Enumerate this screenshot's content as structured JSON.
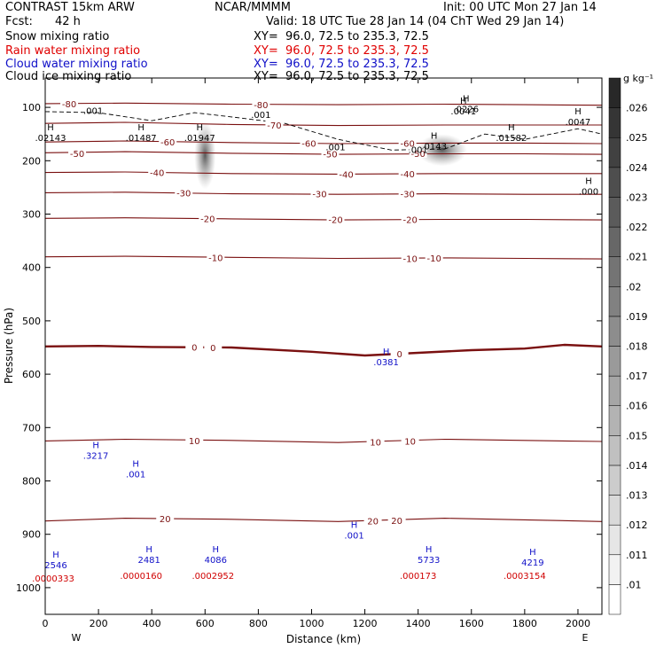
{
  "header": {
    "model": "CONTRAST 15km ARW",
    "org": "NCAR/MMMM",
    "init": "Init: 00 UTC Mon 27 Jan 14",
    "fcst_label": "Fcst:",
    "fcst_value": "42 h",
    "valid": "Valid: 18 UTC Tue 28 Jan 14 (04 ChT Wed 29 Jan 14)",
    "fields": [
      {
        "name": "Snow mixing ratio",
        "xy": "XY=  96.0, 72.5 to 235.3, 72.5",
        "color": "#000000"
      },
      {
        "name": "Rain water mixing ratio",
        "xy": "XY=  96.0, 72.5 to 235.3, 72.5",
        "color": "#e00000"
      },
      {
        "name": "Cloud water mixing ratio",
        "xy": "XY=  96.0, 72.5 to 235.3, 72.5",
        "color": "#1010c8"
      },
      {
        "name": "Cloud ice mixing ratio",
        "xy": "XY=  96.0, 72.5 to 235.3, 72.5",
        "color": "#000000"
      }
    ]
  },
  "chart_data": {
    "type": "contour",
    "xlabel": "Distance (km)",
    "ylabel": "Pressure (hPa)",
    "xlim": [
      0,
      2090
    ],
    "ylim": [
      1050,
      45
    ],
    "x_ticks": [
      0,
      200,
      400,
      600,
      800,
      1000,
      1200,
      1400,
      1600,
      1800,
      2000
    ],
    "y_ticks": [
      100,
      200,
      300,
      400,
      500,
      600,
      700,
      800,
      900,
      1000
    ],
    "x_end_labels": {
      "left": "W",
      "right": "E"
    },
    "colorbar": {
      "unit": "g kg⁻¹",
      "levels": [
        ".01",
        ".011",
        ".012",
        ".013",
        ".014",
        ".015",
        ".016",
        ".017",
        ".018",
        ".019",
        ".02",
        ".021",
        ".022",
        ".023",
        ".024",
        ".025",
        ".026"
      ]
    },
    "temperature_isotherms": [
      {
        "label": "-80",
        "points": [
          [
            0,
            93
          ],
          [
            300,
            92
          ],
          [
            700,
            94
          ],
          [
            1100,
            95
          ],
          [
            1500,
            94
          ],
          [
            1800,
            95
          ],
          [
            2090,
            96
          ]
        ],
        "label_positions": [
          [
            90,
            93
          ],
          [
            810,
            95
          ]
        ]
      },
      {
        "label": "-70",
        "points": [
          [
            0,
            130
          ],
          [
            300,
            128
          ],
          [
            700,
            132
          ],
          [
            1100,
            134
          ],
          [
            1500,
            133
          ],
          [
            1800,
            133
          ],
          [
            2090,
            133
          ]
        ],
        "label_positions": [
          [
            860,
            133
          ]
        ]
      },
      {
        "label": "-60",
        "points": [
          [
            0,
            165
          ],
          [
            300,
            163
          ],
          [
            700,
            166
          ],
          [
            1100,
            168
          ],
          [
            1500,
            167
          ],
          [
            1800,
            167
          ],
          [
            2090,
            168
          ]
        ],
        "label_positions": [
          [
            460,
            165
          ],
          [
            990,
            167
          ],
          [
            1360,
            167
          ]
        ]
      },
      {
        "label": "-50",
        "points": [
          [
            0,
            185
          ],
          [
            300,
            183
          ],
          [
            700,
            186
          ],
          [
            1100,
            188
          ],
          [
            1500,
            187
          ],
          [
            1800,
            187
          ],
          [
            2090,
            188
          ]
        ],
        "label_positions": [
          [
            120,
            186
          ],
          [
            1070,
            187
          ],
          [
            1400,
            186
          ]
        ]
      },
      {
        "label": "-40",
        "points": [
          [
            0,
            222
          ],
          [
            300,
            221
          ],
          [
            700,
            224
          ],
          [
            1100,
            225
          ],
          [
            1500,
            224
          ],
          [
            1800,
            224
          ],
          [
            2090,
            224
          ]
        ],
        "label_positions": [
          [
            420,
            222
          ],
          [
            1130,
            225
          ],
          [
            1360,
            224
          ]
        ]
      },
      {
        "label": "-30",
        "points": [
          [
            0,
            260
          ],
          [
            300,
            259
          ],
          [
            700,
            262
          ],
          [
            1100,
            263
          ],
          [
            1500,
            262
          ],
          [
            1800,
            263
          ],
          [
            2090,
            263
          ]
        ],
        "label_positions": [
          [
            520,
            260
          ],
          [
            1030,
            262
          ],
          [
            1360,
            262
          ]
        ]
      },
      {
        "label": "-20",
        "points": [
          [
            0,
            308
          ],
          [
            300,
            307
          ],
          [
            700,
            309
          ],
          [
            1100,
            311
          ],
          [
            1500,
            310
          ],
          [
            1800,
            310
          ],
          [
            2090,
            311
          ]
        ],
        "label_positions": [
          [
            610,
            308
          ],
          [
            1090,
            310
          ],
          [
            1370,
            310
          ]
        ]
      },
      {
        "label": "-10",
        "points": [
          [
            0,
            380
          ],
          [
            300,
            379
          ],
          [
            700,
            381
          ],
          [
            1100,
            383
          ],
          [
            1500,
            382
          ],
          [
            1800,
            383
          ],
          [
            2090,
            384
          ]
        ],
        "label_positions": [
          [
            640,
            381
          ],
          [
            1370,
            383
          ],
          [
            1460,
            382
          ]
        ]
      },
      {
        "label": "0",
        "points": [
          [
            0,
            548
          ],
          [
            200,
            547
          ],
          [
            400,
            549
          ],
          [
            700,
            550
          ],
          [
            1000,
            558
          ],
          [
            1200,
            565
          ],
          [
            1400,
            560
          ],
          [
            1600,
            555
          ],
          [
            1800,
            552
          ],
          [
            1950,
            545
          ],
          [
            2090,
            548
          ]
        ],
        "label_positions": [
          [
            560,
            549
          ],
          [
            630,
            550
          ],
          [
            1330,
            562
          ]
        ]
      },
      {
        "label": "10",
        "points": [
          [
            0,
            725
          ],
          [
            300,
            722
          ],
          [
            700,
            724
          ],
          [
            1100,
            728
          ],
          [
            1500,
            722
          ],
          [
            1800,
            724
          ],
          [
            2090,
            726
          ]
        ],
        "label_positions": [
          [
            560,
            724
          ],
          [
            1240,
            727
          ],
          [
            1370,
            725
          ]
        ]
      },
      {
        "label": "20",
        "points": [
          [
            0,
            875
          ],
          [
            300,
            870
          ],
          [
            700,
            872
          ],
          [
            1100,
            876
          ],
          [
            1500,
            870
          ],
          [
            1800,
            873
          ],
          [
            2090,
            876
          ]
        ],
        "label_positions": [
          [
            450,
            871
          ],
          [
            1230,
            875
          ],
          [
            1320,
            874
          ]
        ]
      }
    ],
    "snow_contours": [
      {
        "label": ".001",
        "points": [
          [
            0,
            108
          ],
          [
            200,
            110
          ],
          [
            400,
            125
          ],
          [
            560,
            110
          ],
          [
            700,
            118
          ],
          [
            900,
            130
          ],
          [
            1100,
            160
          ],
          [
            1300,
            180
          ],
          [
            1500,
            178
          ],
          [
            1650,
            150
          ],
          [
            1800,
            160
          ],
          [
            2000,
            140
          ],
          [
            2090,
            150
          ]
        ],
        "label_positions": [
          [
            180,
            107
          ],
          [
            810,
            115
          ],
          [
            1090,
            175
          ],
          [
            1400,
            180
          ]
        ]
      }
    ],
    "cloud_water_maxima": [
      {
        "value": ".3217",
        "x": 190,
        "p": 755
      },
      {
        "value": ".001",
        "x": 340,
        "p": 790
      },
      {
        "value": ".0381",
        "x": 1280,
        "p": 580
      },
      {
        "value": ".001",
        "x": 1160,
        "p": 905
      },
      {
        "value": "2546",
        "x": 40,
        "p": 960
      },
      {
        "value": "2481",
        "x": 390,
        "p": 950
      },
      {
        "value": "4086",
        "x": 640,
        "p": 950
      },
      {
        "value": "5733",
        "x": 1440,
        "p": 950
      },
      {
        "value": "4219",
        "x": 1830,
        "p": 955
      }
    ],
    "rain_maxima": [
      {
        "value": ".0000333",
        "x": 30,
        "p": 985
      },
      {
        "value": ".0000160",
        "x": 360,
        "p": 980
      },
      {
        "value": ".0002952",
        "x": 630,
        "p": 980
      },
      {
        "value": ".000173",
        "x": 1400,
        "p": 980
      },
      {
        "value": ".0003154",
        "x": 1800,
        "p": 980
      }
    ],
    "ice_maxima": [
      {
        "value": ".02143",
        "x": 20,
        "p": 160
      },
      {
        "value": ".01487",
        "x": 360,
        "p": 160
      },
      {
        "value": ".01947",
        "x": 580,
        "p": 160
      },
      {
        "value": ".0143",
        "x": 1460,
        "p": 175
      },
      {
        "value": ".01582",
        "x": 1750,
        "p": 160
      },
      {
        "value": ".0047",
        "x": 2000,
        "p": 130
      },
      {
        "value": ".000",
        "x": 2040,
        "p": 260
      },
      {
        "value": ".0226",
        "x": 1580,
        "p": 106
      },
      {
        "value": ".0041",
        "x": 1570,
        "p": 110
      }
    ],
    "shaded_blobs": [
      {
        "x": 1490,
        "p": 180,
        "rx": 28,
        "ry": 18
      },
      {
        "x": 600,
        "p": 190,
        "rx": 12,
        "ry": 38
      }
    ]
  }
}
